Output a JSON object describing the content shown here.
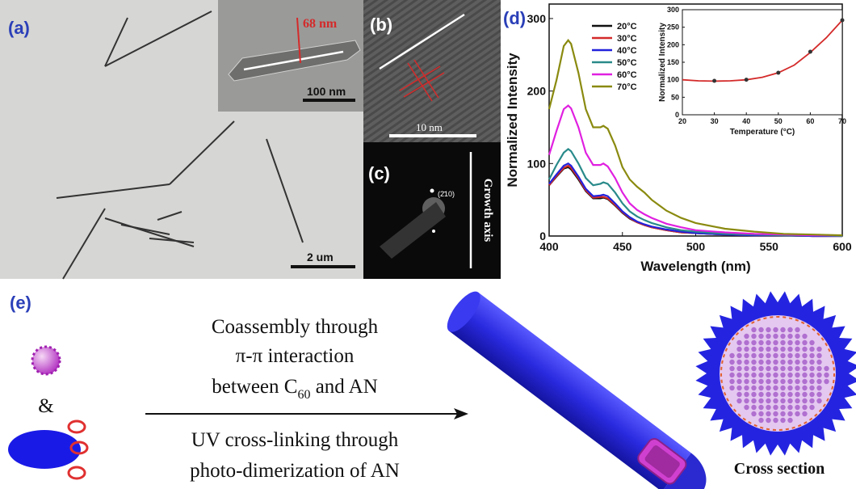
{
  "panels": {
    "a": {
      "label": "(a)",
      "scale_bar": "2 um",
      "inset_dimension": "68 nm",
      "inset_scale_bar": "100 nm"
    },
    "b": {
      "label": "(b)",
      "scale_bar": "10 nm"
    },
    "c": {
      "label": "(c)",
      "spot_index": "(2̄10)",
      "axis_label": "Growth axis"
    },
    "d": {
      "label": "(d)"
    },
    "e": {
      "label": "(e)",
      "ampersand": "&",
      "step1": [
        "Coassembly through",
        "π-π interaction"
      ],
      "step1_line3": {
        "text": "between C",
        "sub": "60",
        "tail": " and AN"
      },
      "step2": [
        "UV cross-linking through",
        "photo-dimerization of AN"
      ],
      "product_caption": "Cross section"
    }
  },
  "chart_data": [
    {
      "type": "line",
      "xlabel": "Wavelength (nm)",
      "ylabel": "Normalized Intensity",
      "x": [
        400,
        405,
        410,
        413,
        415,
        420,
        425,
        430,
        435,
        437,
        440,
        445,
        450,
        455,
        460,
        465,
        470,
        480,
        490,
        500,
        520,
        540,
        560,
        580,
        600
      ],
      "xlim": [
        400,
        600
      ],
      "xticks": [
        400,
        450,
        500,
        550,
        600
      ],
      "ylim": [
        0,
        320
      ],
      "yticks": [
        0,
        100,
        200,
        300
      ],
      "legend": "upper left",
      "series": [
        {
          "name": "20°C",
          "color": "#111111",
          "values": [
            70,
            82,
            93,
            95,
            92,
            78,
            62,
            52,
            52,
            53,
            51,
            42,
            32,
            24,
            19,
            15,
            12,
            8,
            5,
            4,
            2,
            1,
            1,
            0,
            0
          ]
        },
        {
          "name": "30°C",
          "color": "#d42a2a",
          "values": [
            70,
            83,
            94,
            97,
            94,
            80,
            63,
            53,
            54,
            54,
            52,
            43,
            33,
            25,
            19,
            15,
            12,
            8,
            5,
            4,
            2,
            1,
            1,
            0,
            0
          ]
        },
        {
          "name": "40°C",
          "color": "#2222dd",
          "values": [
            72,
            85,
            97,
            100,
            97,
            82,
            65,
            55,
            56,
            57,
            55,
            45,
            34,
            26,
            20,
            16,
            13,
            9,
            6,
            4,
            2,
            1,
            1,
            0,
            0
          ]
        },
        {
          "name": "50°C",
          "color": "#2a8a8a",
          "values": [
            78,
            98,
            115,
            120,
            117,
            100,
            80,
            70,
            72,
            74,
            72,
            60,
            45,
            34,
            27,
            22,
            18,
            12,
            8,
            6,
            3,
            2,
            1,
            1,
            0
          ]
        },
        {
          "name": "60°C",
          "color": "#e020e0",
          "values": [
            112,
            145,
            175,
            180,
            176,
            150,
            115,
            98,
            98,
            100,
            96,
            80,
            60,
            45,
            36,
            30,
            25,
            17,
            12,
            8,
            5,
            3,
            2,
            1,
            1
          ]
        },
        {
          "name": "70°C",
          "color": "#8a8a10",
          "values": [
            175,
            215,
            262,
            270,
            265,
            225,
            175,
            150,
            150,
            152,
            148,
            125,
            95,
            78,
            68,
            60,
            50,
            35,
            25,
            18,
            10,
            6,
            3,
            2,
            1
          ]
        }
      ]
    },
    {
      "type": "scatter",
      "xlabel": "Temperature (°C)",
      "ylabel": "Normalized Intensity",
      "x": [
        30,
        40,
        50,
        60,
        70
      ],
      "values": [
        97,
        100,
        120,
        180,
        270
      ],
      "color": "#333333",
      "fit": {
        "x": [
          20,
          25,
          30,
          35,
          40,
          45,
          50,
          55,
          60,
          65,
          70
        ],
        "values": [
          100,
          97,
          96,
          97,
          100,
          107,
          120,
          142,
          178,
          220,
          270
        ],
        "color": "#d42a2a"
      },
      "xlim": [
        20,
        70
      ],
      "xticks": [
        20,
        30,
        40,
        50,
        60,
        70
      ],
      "ylim": [
        0,
        300
      ],
      "yticks": [
        0,
        50,
        100,
        150,
        200,
        250,
        300
      ]
    }
  ]
}
